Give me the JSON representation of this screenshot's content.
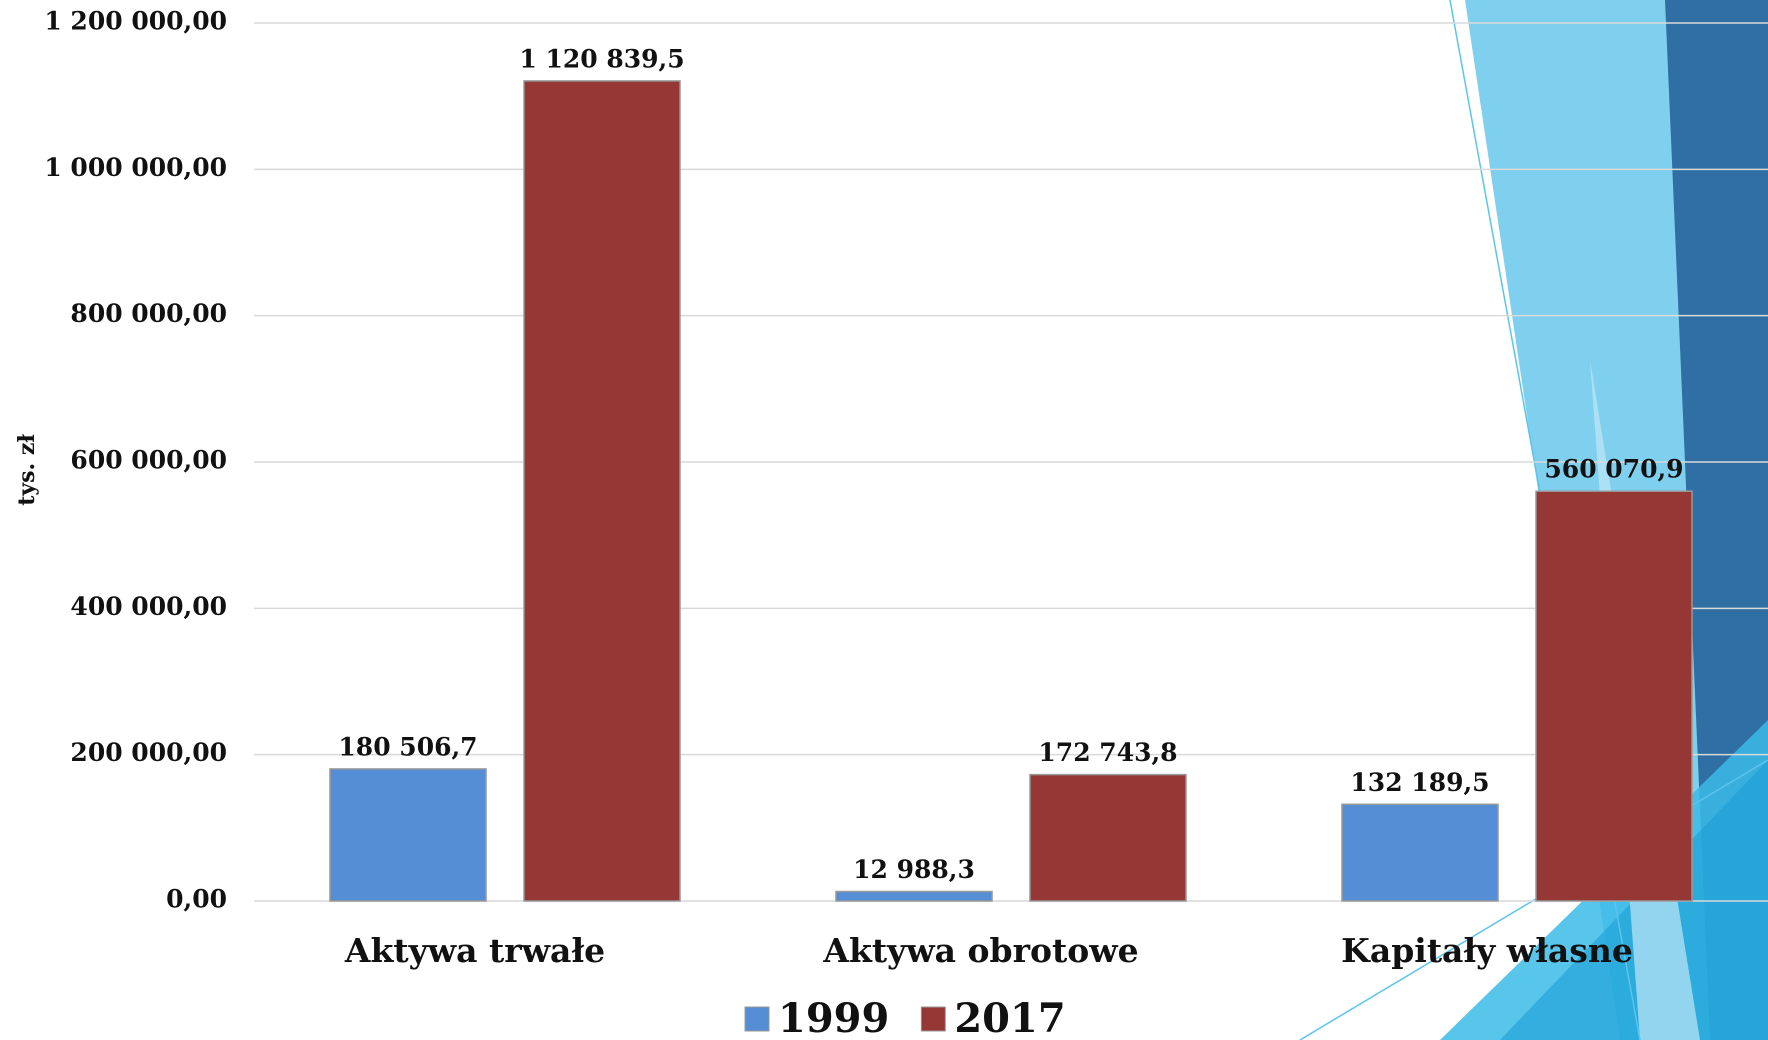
{
  "chart_data": {
    "type": "bar",
    "y_label": "tys. zł",
    "categories": [
      "Aktywa trwałe",
      "Aktywa obrotowe",
      "Kapitały własne"
    ],
    "series": [
      {
        "name": "1999",
        "color": "#558ed5",
        "values": [
          180506.7,
          12988.3,
          132189.5
        ],
        "value_labels": [
          "180 506,7",
          "12 988,3",
          "132 189,5"
        ]
      },
      {
        "name": "2017",
        "color": "#953735",
        "values": [
          1120839.5,
          172743.8,
          560070.9
        ],
        "value_labels": [
          "1 120 839,5",
          "172 743,8",
          "560 070,9"
        ]
      }
    ],
    "ylim": [
      0,
      1200000
    ],
    "yticks": [
      {
        "value": 0,
        "label": "0,00"
      },
      {
        "value": 200000,
        "label": "200 000,00"
      },
      {
        "value": 400000,
        "label": "400 000,00"
      },
      {
        "value": 600000,
        "label": "600 000,00"
      },
      {
        "value": 800000,
        "label": "800 000,00"
      },
      {
        "value": 1000000,
        "label": "1 000 000,00"
      },
      {
        "value": 1200000,
        "label": "1 200 000,00"
      }
    ],
    "grid": true,
    "legend": "bottom"
  }
}
